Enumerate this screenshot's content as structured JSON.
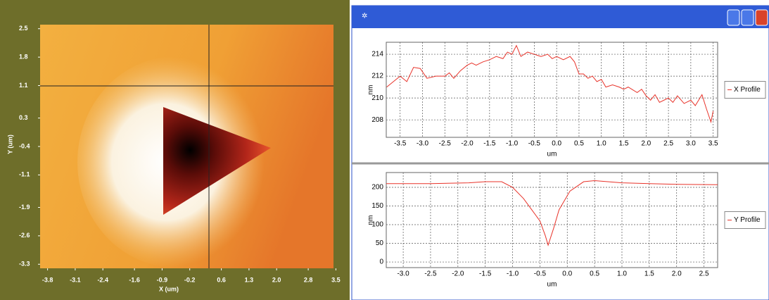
{
  "chart_data": [
    {
      "type": "image",
      "xlabel": "X (um)",
      "ylabel": "Y (um)",
      "xlim": [
        -3.9,
        3.6
      ],
      "ylim": [
        -3.4,
        2.6
      ],
      "xticks": [
        -3.8,
        -3.1,
        -2.4,
        -1.6,
        -0.9,
        -0.2,
        0.6,
        1.3,
        {
          "value": 2,
          "label": "2.0"
        },
        2.8,
        3.5
      ],
      "yticks": [
        2.5,
        1.8,
        1.1,
        0.3,
        -0.4,
        -1.1,
        -1.9,
        -2.6,
        -3.3
      ]
    },
    {
      "type": "line",
      "xlabel": "um",
      "ylabel": "nm",
      "legend": "right",
      "xlim": [
        -3.81,
        3.6
      ],
      "ylim": [
        206.4,
        215.1
      ],
      "xticks": [
        -3.5,
        {
          "value": -3,
          "label": "-3.0"
        },
        -2.5,
        {
          "value": -2,
          "label": "-2.0"
        },
        -1.5,
        {
          "value": -1,
          "label": "-1.0"
        },
        -0.5,
        {
          "value": 0,
          "label": "0.0"
        },
        0.5,
        {
          "value": 1,
          "label": "1.0"
        },
        1.5,
        {
          "value": 2,
          "label": "2.0"
        },
        2.5,
        {
          "value": 3,
          "label": "3.0"
        },
        3.5
      ],
      "yticks": [
        208,
        210,
        212,
        214
      ],
      "grid": true,
      "series": [
        {
          "name": "X Profile",
          "color": "#e8332a",
          "x": [
            -3.8,
            -3.65,
            -3.5,
            -3.35,
            -3.2,
            -3.05,
            -2.9,
            -2.7,
            -2.5,
            -2.4,
            -2.3,
            -2.15,
            -2.0,
            -1.9,
            -1.8,
            -1.65,
            -1.5,
            -1.35,
            -1.2,
            -1.1,
            -1.0,
            -0.9,
            -0.8,
            -0.65,
            -0.5,
            -0.35,
            -0.2,
            -0.1,
            0.0,
            0.15,
            0.3,
            0.4,
            0.5,
            0.6,
            0.7,
            0.8,
            0.9,
            1.0,
            1.1,
            1.25,
            1.4,
            1.5,
            1.6,
            1.8,
            1.9,
            2.0,
            2.1,
            2.2,
            2.3,
            2.5,
            2.6,
            2.7,
            2.85,
            3.0,
            3.1,
            3.25,
            3.35,
            3.45,
            3.5
          ],
          "values": [
            211,
            211.5,
            212,
            211.5,
            212.8,
            212.7,
            211.8,
            212,
            212,
            212.3,
            211.8,
            212.5,
            213,
            213.2,
            213,
            213.3,
            213.5,
            213.8,
            213.6,
            214.2,
            214,
            214.8,
            213.8,
            214.2,
            214,
            213.8,
            214,
            213.6,
            213.8,
            213.5,
            213.8,
            213.3,
            212.2,
            212.2,
            211.8,
            212,
            211.5,
            211.7,
            211,
            211.2,
            211,
            210.8,
            211,
            210.5,
            210.8,
            210.2,
            209.8,
            210.3,
            209.6,
            210,
            209.6,
            210.2,
            209.5,
            209.8,
            209.3,
            210.3,
            209,
            207.8,
            208.8
          ]
        }
      ]
    },
    {
      "type": "line",
      "xlabel": "um",
      "ylabel": "nm",
      "legend": "right",
      "xlim": [
        -3.31,
        2.75
      ],
      "ylim": [
        -15,
        239.6
      ],
      "xticks": [
        {
          "value": -3,
          "label": "-3.0"
        },
        -2.5,
        {
          "value": -2,
          "label": "-2.0"
        },
        -1.5,
        {
          "value": -1,
          "label": "-1.0"
        },
        -0.5,
        {
          "value": 0,
          "label": "0.0"
        },
        0.5,
        {
          "value": 1,
          "label": "1.0"
        },
        1.5,
        {
          "value": 2,
          "label": "2.0"
        },
        2.5
      ],
      "yticks": [
        0,
        50,
        100,
        150,
        200
      ],
      "grid": true,
      "series": [
        {
          "name": "Y Profile",
          "color": "#e8332a",
          "x": [
            -3.31,
            -2.5,
            -1.8,
            -1.5,
            -1.2,
            -1.0,
            -0.8,
            -0.65,
            -0.5,
            -0.4,
            -0.35,
            -0.25,
            -0.15,
            0.05,
            0.3,
            0.5,
            1.0,
            1.5,
            2.0,
            2.75
          ],
          "values": [
            210,
            210,
            212,
            215,
            215,
            200,
            170,
            140,
            110,
            70,
            45,
            90,
            140,
            190,
            215,
            218,
            212,
            210,
            208,
            207
          ]
        }
      ]
    }
  ]
}
